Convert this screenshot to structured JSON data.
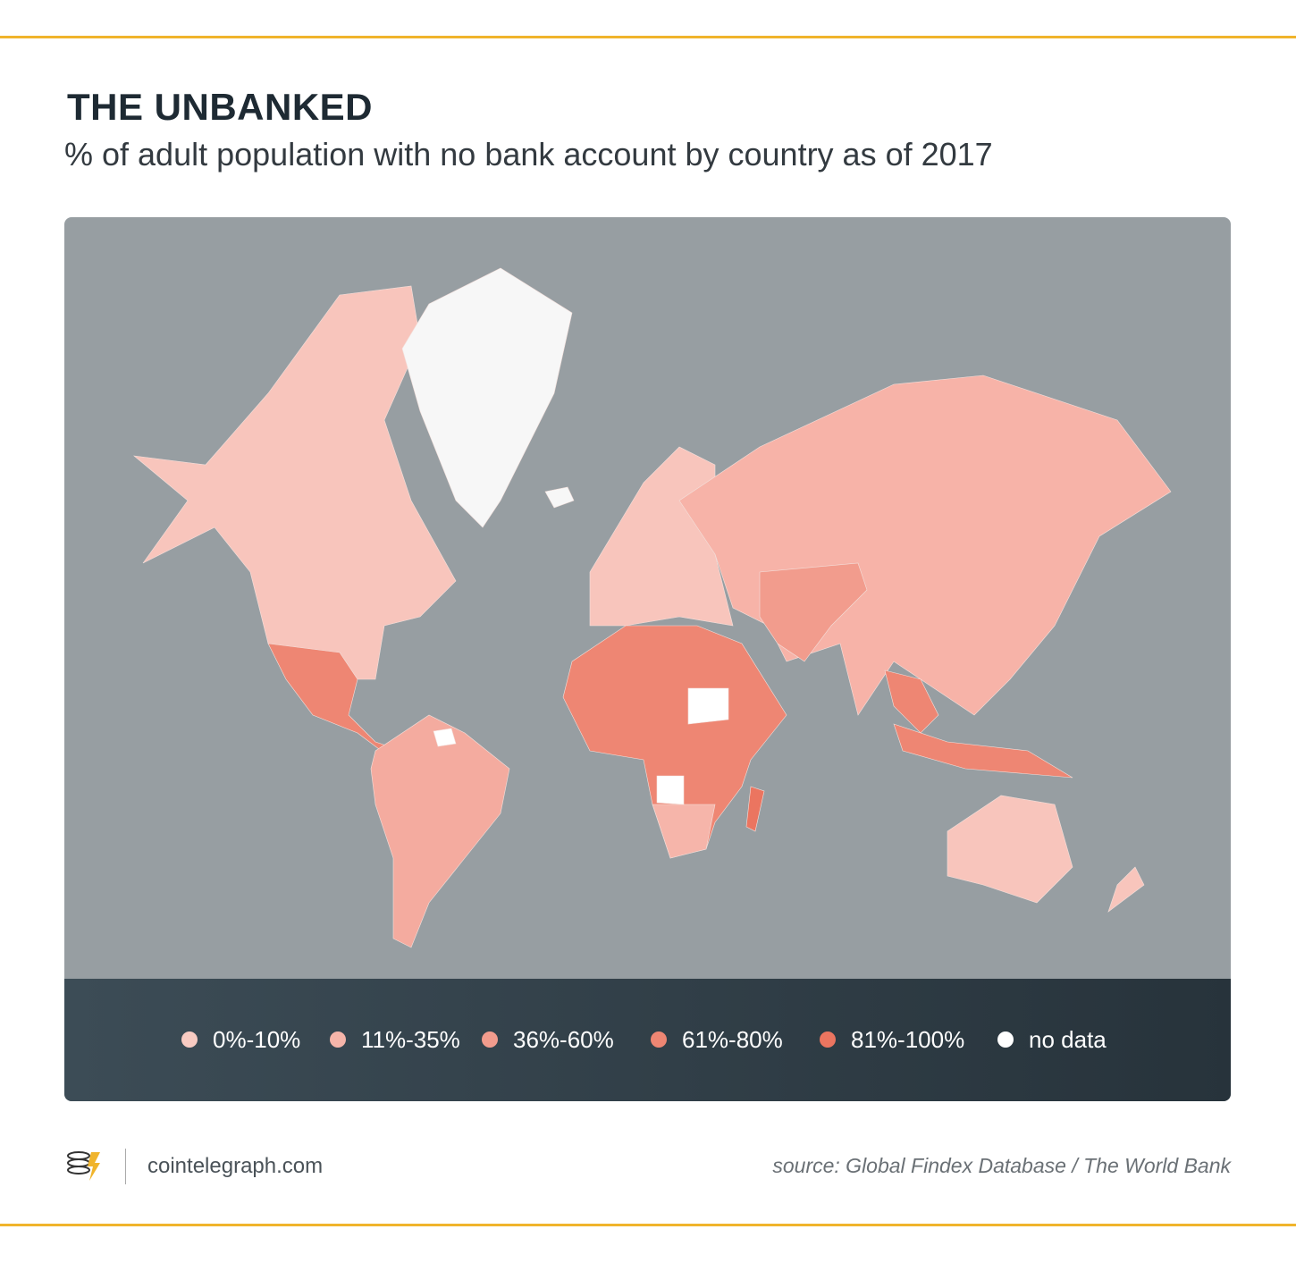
{
  "header": {
    "title": "THE UNBANKED",
    "subtitle": "% of adult population with no bank account by country as of 2017"
  },
  "legend": {
    "items": [
      {
        "label": "0%-10%",
        "color": "#f8cbc2"
      },
      {
        "label": "11%-35%",
        "color": "#f6b5aa"
      },
      {
        "label": "36%-60%",
        "color": "#f29c8d"
      },
      {
        "label": "61%-80%",
        "color": "#ee8673"
      },
      {
        "label": "81%-100%",
        "color": "#eb7560"
      },
      {
        "label": "no data",
        "color": "#ffffff"
      }
    ]
  },
  "footer": {
    "brand": "cointelegraph.com",
    "source": "source: Global Findex Database / The World Bank"
  }
}
